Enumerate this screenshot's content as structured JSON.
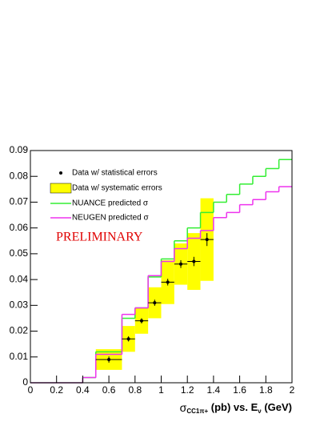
{
  "chart_data": {
    "type": "histogram",
    "xlabel": [
      "σ",
      "CC1π+",
      " (pb) vs. E",
      "ν",
      " (GeV)"
    ],
    "annotation": "PRELIMINARY",
    "xlim": [
      0,
      2
    ],
    "ylim": [
      0,
      0.09
    ],
    "xticks": [
      0,
      0.2,
      0.4,
      0.6,
      0.8,
      1,
      1.2,
      1.4,
      1.6,
      1.8,
      2
    ],
    "yticks": [
      0,
      0.01,
      0.02,
      0.03,
      0.04,
      0.05,
      0.06,
      0.07,
      0.08,
      0.09
    ],
    "bins": [
      0,
      0.1,
      0.2,
      0.3,
      0.4,
      0.5,
      0.6,
      0.7,
      0.8,
      0.9,
      1,
      1.1,
      1.2,
      1.3,
      1.4,
      1.5,
      1.6,
      1.7,
      1.8,
      1.9,
      2
    ],
    "series": [
      {
        "name": "NUANCE predicted σ",
        "color": "#33ee33",
        "values": [
          0,
          0,
          0,
          0,
          0.002,
          0.012,
          0.012,
          0.025,
          0.029,
          0.041,
          0.048,
          0.055,
          0.06,
          0.066,
          0.07,
          0.073,
          0.077,
          0.08,
          0.083,
          0.0865
        ]
      },
      {
        "name": "NEUGEN predicted σ",
        "color": "#ee33ee",
        "values": [
          0,
          0,
          0,
          0,
          0.002,
          0.011,
          0.011,
          0.0265,
          0.029,
          0.0415,
          0.047,
          0.052,
          0.056,
          0.059,
          0.064,
          0.066,
          0.069,
          0.071,
          0.074,
          0.076
        ]
      }
    ],
    "data": {
      "name": "Data w/ statistical errors",
      "syst_name": "Data w/ systematic errors",
      "color": "#000000",
      "syst_color": "#ffff00",
      "x": [
        0.6,
        0.75,
        0.85,
        0.95,
        1.05,
        1.15,
        1.25,
        1.35
      ],
      "xerr": [
        0.1,
        0.05,
        0.05,
        0.05,
        0.05,
        0.05,
        0.05,
        0.05
      ],
      "values": [
        0.009,
        0.017,
        0.024,
        0.031,
        0.039,
        0.046,
        0.047,
        0.0555
      ],
      "stat_errors": [
        0.0012,
        0.001,
        0.001,
        0.0012,
        0.0013,
        0.0015,
        0.0018,
        0.0025
      ],
      "syst_errors": [
        0.004,
        0.005,
        0.005,
        0.006,
        0.0085,
        0.008,
        0.011,
        0.016
      ]
    }
  }
}
